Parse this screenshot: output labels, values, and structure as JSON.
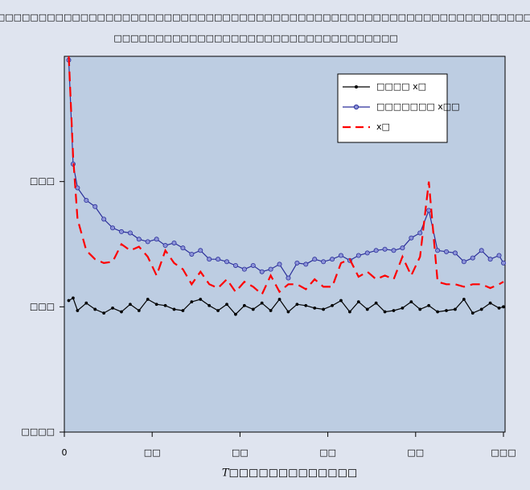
{
  "chart_data": {
    "type": "line",
    "title": "□□□□□□□□□□□□□□□□□□□□□□□□□□□□□□□□□□□□□□□□□□□□□□□□□□□□□□□□□□□□□□□□□□□□",
    "subtitle": "□□□□□□□□□□□□□□□□□□□□□□□□□□□□□□□□□□",
    "x_label": "T□□□□□□□□□□□□□",
    "x": [
      1,
      2,
      3,
      5,
      7,
      9,
      11,
      13,
      15,
      17,
      19,
      21,
      23,
      25,
      27,
      29,
      31,
      33,
      35,
      37,
      39,
      41,
      43,
      45,
      47,
      49,
      51,
      53,
      55,
      57,
      59,
      61,
      63,
      65,
      67,
      69,
      71,
      73,
      75,
      77,
      79,
      81,
      83,
      85,
      87,
      89,
      91,
      93,
      95,
      97,
      99,
      100
    ],
    "xlim": [
      0,
      100
    ],
    "xticks": [
      {
        "value": 0,
        "label": "0"
      },
      {
        "value": 20,
        "label": "□□"
      },
      {
        "value": 40,
        "label": "□□"
      },
      {
        "value": 60,
        "label": "□□"
      },
      {
        "value": 80,
        "label": "□□"
      },
      {
        "value": 100,
        "label": "□□□"
      }
    ],
    "ylim": [
      -0.1,
      0.2
    ],
    "yticks": [
      {
        "value": -0.1,
        "label": "□□□□"
      },
      {
        "value": 0,
        "label": "□□□"
      },
      {
        "value": 0.1,
        "label": "□□□"
      }
    ],
    "series": [
      {
        "name": "□□□□ x□",
        "color": "#000000",
        "marker": "dot",
        "dash": false,
        "values": [
          0.005,
          0.007,
          -0.003,
          0.003,
          -0.002,
          -0.005,
          -0.001,
          -0.004,
          0.002,
          -0.003,
          0.006,
          0.002,
          0.001,
          -0.002,
          -0.003,
          0.004,
          0.006,
          0.001,
          -0.003,
          0.002,
          -0.006,
          0.001,
          -0.002,
          0.003,
          -0.003,
          0.006,
          -0.004,
          0.002,
          0.001,
          -0.001,
          -0.002,
          0.001,
          0.005,
          -0.004,
          0.004,
          -0.002,
          0.003,
          -0.004,
          -0.003,
          -0.001,
          0.004,
          -0.002,
          0.001,
          -0.004,
          -0.003,
          -0.002,
          0.006,
          -0.005,
          -0.002,
          0.003,
          -0.001,
          0.0
        ]
      },
      {
        "name": "□□□□□□□ x□□",
        "color": "#2b2f9a",
        "marker": "circle",
        "dash": false,
        "values": [
          0.197,
          0.114,
          0.095,
          0.085,
          0.08,
          0.07,
          0.063,
          0.06,
          0.059,
          0.054,
          0.052,
          0.054,
          0.049,
          0.051,
          0.047,
          0.042,
          0.045,
          0.038,
          0.038,
          0.036,
          0.033,
          0.03,
          0.033,
          0.028,
          0.03,
          0.034,
          0.023,
          0.035,
          0.034,
          0.038,
          0.036,
          0.038,
          0.041,
          0.037,
          0.041,
          0.043,
          0.045,
          0.046,
          0.045,
          0.047,
          0.055,
          0.059,
          0.077,
          0.045,
          0.044,
          0.043,
          0.036,
          0.039,
          0.045,
          0.038,
          0.041,
          0.035
        ]
      },
      {
        "name": "x□",
        "color": "#ff0000",
        "marker": "none",
        "dash": true,
        "values": [
          0.2,
          0.12,
          0.07,
          0.045,
          0.038,
          0.035,
          0.036,
          0.05,
          0.045,
          0.048,
          0.04,
          0.025,
          0.045,
          0.035,
          0.03,
          0.018,
          0.028,
          0.018,
          0.015,
          0.022,
          0.012,
          0.02,
          0.016,
          0.01,
          0.025,
          0.012,
          0.018,
          0.018,
          0.014,
          0.022,
          0.016,
          0.016,
          0.035,
          0.038,
          0.024,
          0.028,
          0.022,
          0.025,
          0.022,
          0.04,
          0.025,
          0.04,
          0.1,
          0.02,
          0.018,
          0.018,
          0.016,
          0.018,
          0.018,
          0.015,
          0.018,
          0.02
        ]
      }
    ],
    "legend": "upper right"
  }
}
